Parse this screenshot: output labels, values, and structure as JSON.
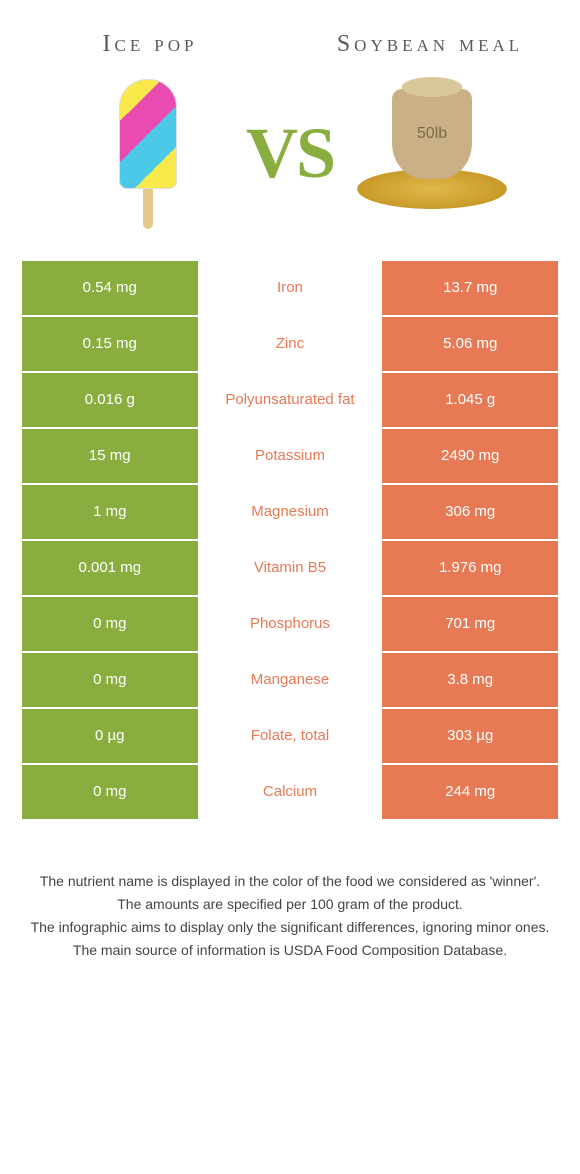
{
  "header": {
    "left_title": "Ice pop",
    "right_title": "Soybean meal",
    "vs_label": "VS",
    "sack_label": "50lb"
  },
  "colors": {
    "left_fill": "#8aad3f",
    "right_fill": "#e77a54",
    "mid_text_default": "#e77a54",
    "background": "#ffffff"
  },
  "nutrients": [
    {
      "label": "Iron",
      "left": "0.54 mg",
      "right": "13.7 mg",
      "winner": "right"
    },
    {
      "label": "Zinc",
      "left": "0.15 mg",
      "right": "5.06 mg",
      "winner": "right"
    },
    {
      "label": "Polyunsaturated fat",
      "left": "0.016 g",
      "right": "1.045 g",
      "winner": "right"
    },
    {
      "label": "Potassium",
      "left": "15 mg",
      "right": "2490 mg",
      "winner": "right"
    },
    {
      "label": "Magnesium",
      "left": "1 mg",
      "right": "306 mg",
      "winner": "right"
    },
    {
      "label": "Vitamin B5",
      "left": "0.001 mg",
      "right": "1.976 mg",
      "winner": "right"
    },
    {
      "label": "Phosphorus",
      "left": "0 mg",
      "right": "701 mg",
      "winner": "right"
    },
    {
      "label": "Manganese",
      "left": "0 mg",
      "right": "3.8 mg",
      "winner": "right"
    },
    {
      "label": "Folate, total",
      "left": "0 µg",
      "right": "303 µg",
      "winner": "right"
    },
    {
      "label": "Calcium",
      "left": "0 mg",
      "right": "244 mg",
      "winner": "right"
    }
  ],
  "footer": {
    "line1": "The nutrient name is displayed in the color of the food we considered as 'winner'.",
    "line2": "The amounts are specified per 100 gram of the product.",
    "line3": "The infographic aims to display only the significant differences, ignoring minor ones.",
    "line4": "The main source of information is USDA Food Composition Database."
  }
}
